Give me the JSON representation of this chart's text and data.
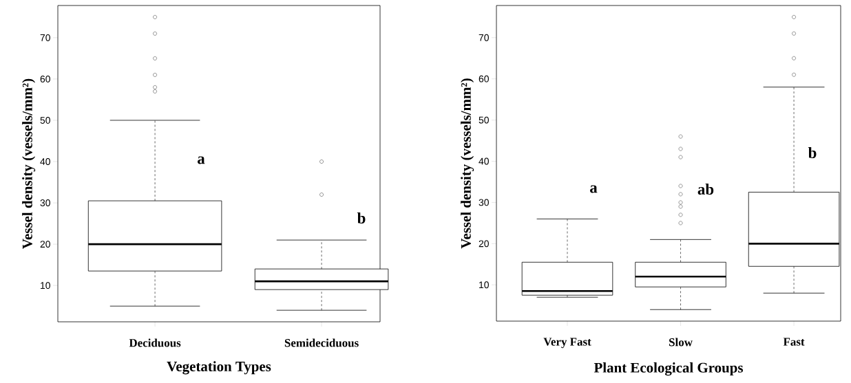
{
  "chart_data": [
    {
      "type": "box",
      "xlabel": "Vegetation Types",
      "ylabel": "Vessel density (vessels/mm²)",
      "categories": [
        "Deciduous",
        "Semideciduous"
      ],
      "boxes": [
        {
          "low": 5,
          "q1": 13.5,
          "median": 20,
          "q3": 30.5,
          "high": 50,
          "outliers": [
            57,
            58,
            61,
            65,
            71,
            75
          ]
        },
        {
          "low": 4,
          "q1": 9,
          "median": 11,
          "q3": 14,
          "high": 21,
          "outliers": [
            32,
            40
          ]
        }
      ],
      "ylim": [
        1.2,
        77.8
      ],
      "yticks": [
        10,
        20,
        30,
        40,
        50,
        60,
        70
      ],
      "annotations": [
        "a",
        "b"
      ]
    },
    {
      "type": "box",
      "xlabel": "Plant Ecological Groups",
      "ylabel": "Vessel density (vessels/mm²)",
      "categories": [
        "Very Fast",
        "Slow",
        "Fast"
      ],
      "boxes": [
        {
          "low": 7,
          "q1": 7.5,
          "median": 8.5,
          "q3": 15.5,
          "high": 26
        },
        {
          "low": 4,
          "q1": 9.5,
          "median": 12,
          "q3": 15.5,
          "high": 21,
          "outliers": [
            25,
            27,
            29,
            30,
            32,
            34,
            41,
            43,
            46
          ]
        },
        {
          "low": 8,
          "q1": 14.5,
          "median": 20,
          "q3": 32.5,
          "high": 58,
          "outliers": [
            61,
            65,
            71,
            75
          ]
        }
      ],
      "ylim": [
        1.2,
        77.8
      ],
      "yticks": [
        10,
        20,
        30,
        40,
        50,
        60,
        70
      ],
      "annotations": [
        "a",
        "ab",
        "b"
      ]
    }
  ]
}
